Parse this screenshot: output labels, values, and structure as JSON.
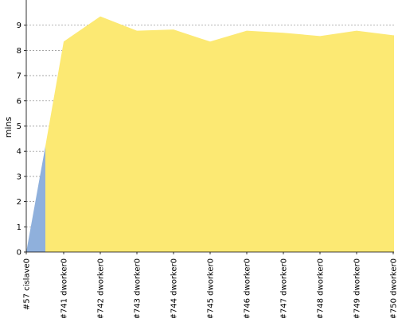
{
  "chart_data": {
    "type": "area",
    "ylabel": "mins",
    "ylim": [
      0,
      10
    ],
    "yticks": [
      0,
      1,
      2,
      3,
      4,
      5,
      6,
      7,
      8,
      9
    ],
    "grid": true,
    "categories": [
      "#57 cislave0",
      "#741 dworker0",
      "#742 dworker0",
      "#743 dworker0",
      "#744 dworker0",
      "#745 dworker0",
      "#746 dworker0",
      "#747 dworker0",
      "#748 dworker0",
      "#749 dworker0",
      "#750 dworker0"
    ],
    "series": [
      {
        "color": "#8fb0dc",
        "points": [
          {
            "x": "#57 cislave0",
            "y": 0
          },
          {
            "x": "#57 cislave0 (end)",
            "y": 4.2
          }
        ]
      },
      {
        "color": "#fce973",
        "values": [
          null,
          8.35,
          9.35,
          8.78,
          8.83,
          8.35,
          8.78,
          8.7,
          8.57,
          8.78,
          8.6
        ]
      }
    ]
  }
}
